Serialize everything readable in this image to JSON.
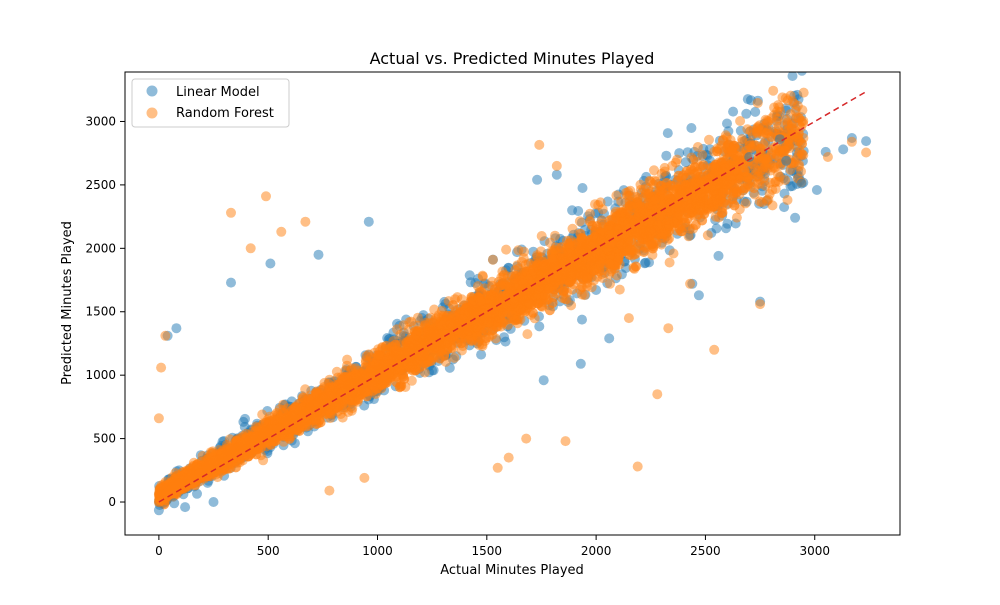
{
  "chart_data": {
    "type": "scatter",
    "title": "Actual vs. Predicted Minutes Played",
    "xlabel": "Actual Minutes Played",
    "ylabel": "Predicted Minutes Played",
    "xlim": [
      -155,
      3390
    ],
    "ylim": [
      -260,
      3390
    ],
    "xticks": [
      0,
      500,
      1000,
      1500,
      2000,
      2500,
      3000
    ],
    "yticks": [
      0,
      500,
      1000,
      1500,
      2000,
      2500,
      3000
    ],
    "grid": false,
    "legend_position": "top-left",
    "reference_line": {
      "style": "dashed",
      "color": "#d62728",
      "x": [
        0,
        3235
      ],
      "y": [
        0,
        3235
      ]
    },
    "series": [
      {
        "name": "Linear Model",
        "color": "#1f77b4",
        "alpha": 0.5,
        "points": [
          [
            3170,
            2870
          ],
          [
            3235,
            2845
          ],
          [
            3130,
            2780
          ],
          [
            3010,
            2460
          ],
          [
            2940,
            2510
          ],
          [
            2840,
            2860
          ],
          [
            2750,
            1580
          ],
          [
            2560,
            1940
          ],
          [
            2470,
            1630
          ],
          [
            2440,
            1720
          ],
          [
            2060,
            1290
          ],
          [
            1930,
            1090
          ],
          [
            1760,
            960
          ],
          [
            1890,
            2300
          ],
          [
            960,
            2210
          ],
          [
            730,
            1950
          ],
          [
            510,
            1880
          ],
          [
            330,
            1730
          ],
          [
            80,
            1370
          ],
          [
            0,
            -65
          ],
          [
            70,
            -10
          ],
          [
            120,
            -40
          ],
          [
            250,
            0
          ],
          [
            40,
            1310
          ],
          [
            1730,
            2540
          ],
          [
            1820,
            2580
          ],
          [
            2410,
            2680
          ],
          [
            2700,
            2720
          ],
          [
            2870,
            2690
          ],
          [
            3050,
            2760
          ]
        ]
      },
      {
        "name": "Random Forest",
        "color": "#ff7f0e",
        "alpha": 0.5,
        "points": [
          [
            330,
            2280
          ],
          [
            490,
            2410
          ],
          [
            670,
            2210
          ],
          [
            1740,
            2815
          ],
          [
            1820,
            2650
          ],
          [
            2580,
            2850
          ],
          [
            3170,
            2840
          ],
          [
            3235,
            2755
          ],
          [
            3060,
            2720
          ],
          [
            2750,
            1560
          ],
          [
            2540,
            1200
          ],
          [
            2280,
            850
          ],
          [
            2190,
            280
          ],
          [
            1680,
            500
          ],
          [
            1860,
            480
          ],
          [
            1550,
            270
          ],
          [
            1600,
            350
          ],
          [
            940,
            190
          ],
          [
            780,
            90
          ],
          [
            420,
            2000
          ],
          [
            560,
            2130
          ],
          [
            30,
            1310
          ],
          [
            10,
            1060
          ],
          [
            0,
            660
          ],
          [
            0,
            0
          ],
          [
            2150,
            1450
          ],
          [
            2330,
            1370
          ],
          [
            2430,
            1720
          ],
          [
            2620,
            2770
          ],
          [
            2920,
            2710
          ]
        ]
      }
    ]
  }
}
